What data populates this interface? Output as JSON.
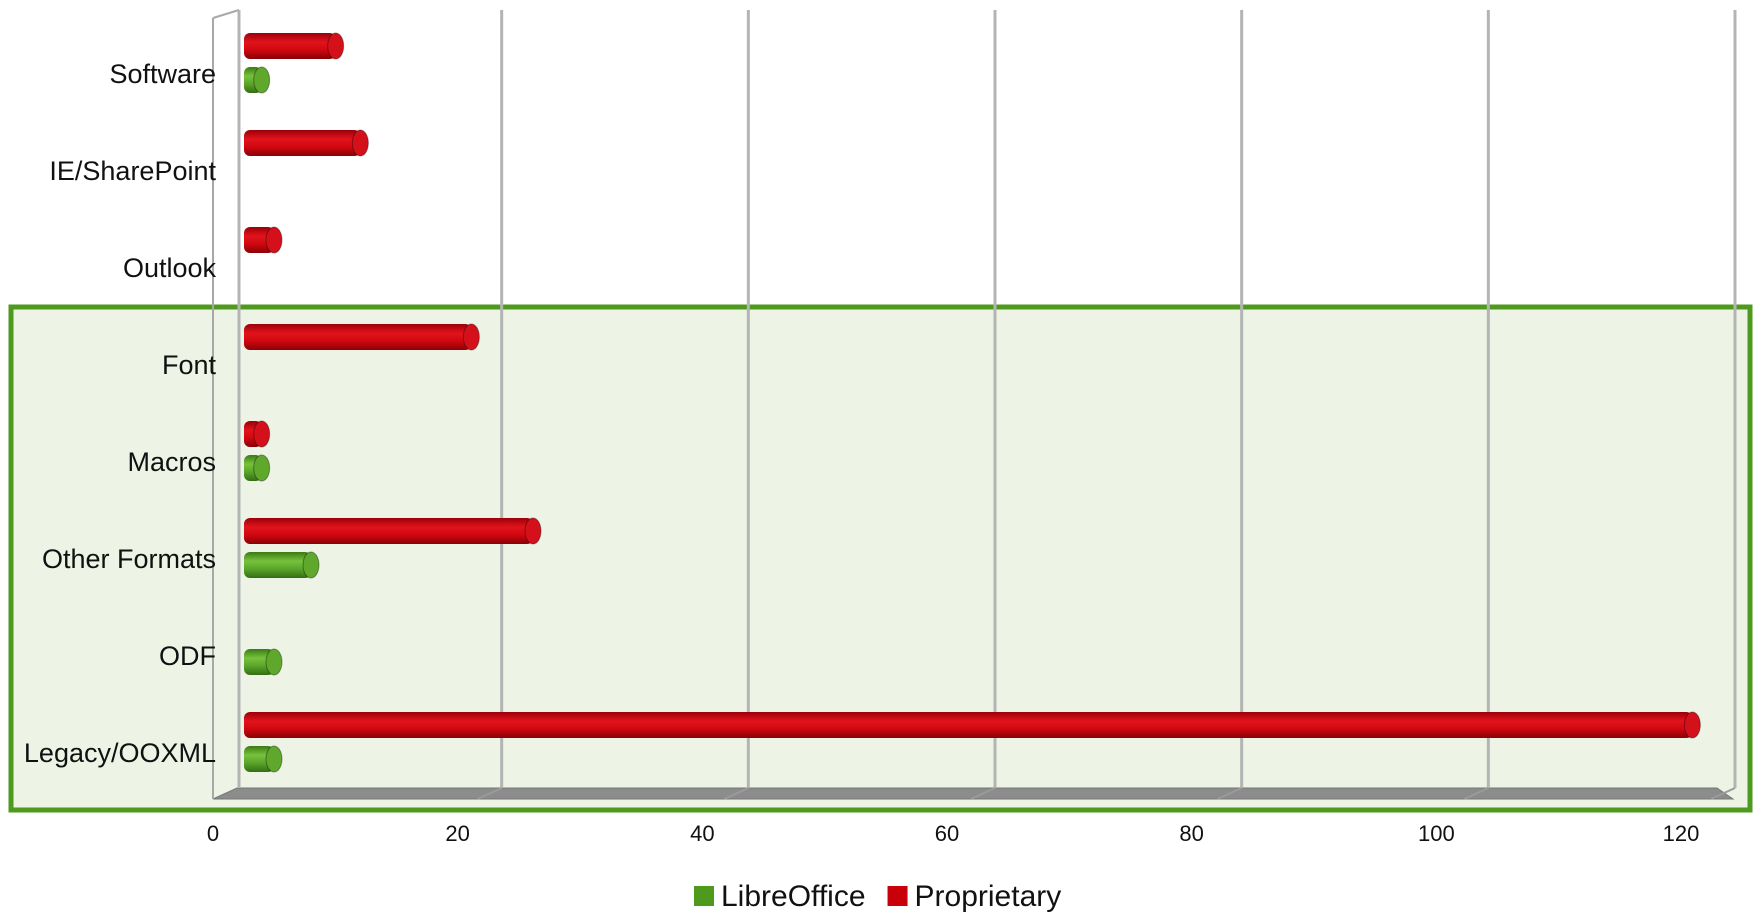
{
  "chart_data": {
    "type": "bar",
    "orientation": "horizontal",
    "categories": [
      "Software",
      "IE/SharePoint",
      "Outlook",
      "Font",
      "Macros",
      "Other Formats",
      "ODF",
      "Legacy/OOXML"
    ],
    "series": [
      {
        "name": "LibreOffice",
        "color": "#4e9a1f",
        "values": [
          2,
          0,
          0,
          0,
          2,
          6,
          3,
          3
        ]
      },
      {
        "name": "Proprietary",
        "color": "#c8000a",
        "values": [
          8,
          10,
          3,
          19,
          2,
          24,
          0,
          118
        ]
      }
    ],
    "x_ticks": [
      "0",
      "20",
      "40",
      "60",
      "80",
      "100",
      "120"
    ],
    "xlim": [
      0,
      120
    ],
    "grid": true,
    "legend_position": "bottom-center",
    "highlight": {
      "categories": [
        "Font",
        "Macros",
        "Other Formats",
        "ODF",
        "Legacy/OOXML"
      ],
      "border_color": "#4e9a1f",
      "fill_color": "#edf3e5"
    }
  }
}
